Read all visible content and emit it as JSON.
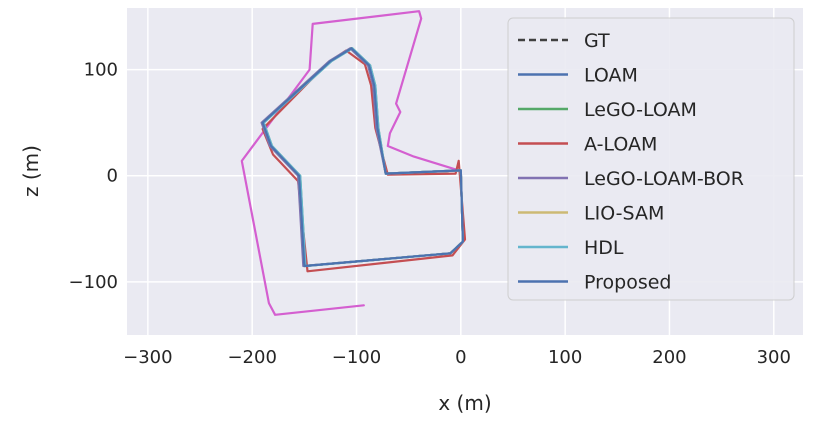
{
  "chart_data": {
    "type": "line",
    "xlabel": "x (m)",
    "ylabel": "z (m)",
    "xlim": [
      -320,
      328
    ],
    "ylim": [
      -150,
      158
    ],
    "xticks": [
      -300,
      -200,
      -100,
      0,
      100,
      200,
      300
    ],
    "xtick_labels": [
      "−300",
      "−200",
      "−100",
      "0",
      "100",
      "200",
      "300"
    ],
    "yticks": [
      -100,
      0,
      100
    ],
    "ytick_labels": [
      "−100",
      "0",
      "100"
    ],
    "grid": true,
    "legend_position": "top-right",
    "background_color": "#EAEAF2",
    "series": [
      {
        "name": "GT",
        "color": "#404040",
        "dashed": true,
        "points": [
          [
            0,
            5
          ],
          [
            -72,
            2
          ],
          [
            -80,
            45
          ],
          [
            -83,
            85
          ],
          [
            -88,
            104
          ],
          [
            -105,
            120
          ],
          [
            -125,
            108
          ],
          [
            -190,
            50
          ],
          [
            -182,
            28
          ],
          [
            -155,
            0
          ],
          [
            -150,
            -85
          ],
          [
            -10,
            -73
          ],
          [
            2,
            -62
          ],
          [
            0,
            5
          ]
        ]
      },
      {
        "name": "LOAM",
        "color": "#4C72B0",
        "dashed": false,
        "points": [
          [
            0,
            5
          ],
          [
            -72,
            2
          ],
          [
            -80,
            45
          ],
          [
            -83,
            85
          ],
          [
            -88,
            104
          ],
          [
            -105,
            120
          ],
          [
            -125,
            108
          ],
          [
            -190,
            50
          ],
          [
            -182,
            28
          ],
          [
            -155,
            0
          ],
          [
            -150,
            -85
          ],
          [
            -10,
            -73
          ],
          [
            2,
            -62
          ],
          [
            0,
            5
          ]
        ]
      },
      {
        "name": "LeGO-LOAM",
        "color": "#55A868",
        "dashed": false,
        "points": [
          [
            0,
            5
          ],
          [
            -72,
            2
          ],
          [
            -79,
            45
          ],
          [
            -82,
            85
          ],
          [
            -87,
            104
          ],
          [
            -104,
            120
          ],
          [
            -124,
            108
          ],
          [
            -189,
            50
          ],
          [
            -181,
            28
          ],
          [
            -154,
            0
          ],
          [
            -149,
            -85
          ],
          [
            -10,
            -73
          ],
          [
            2,
            -62
          ],
          [
            0,
            5
          ]
        ]
      },
      {
        "name": "A-LOAM",
        "color": "#C44E52",
        "dashed": false,
        "points": [
          [
            -2,
            14
          ],
          [
            -5,
            2
          ],
          [
            -70,
            1
          ],
          [
            -82,
            45
          ],
          [
            -86,
            85
          ],
          [
            -92,
            105
          ],
          [
            -110,
            118
          ],
          [
            -128,
            106
          ],
          [
            -190,
            44
          ],
          [
            -180,
            20
          ],
          [
            -156,
            -5
          ],
          [
            -147,
            -90
          ],
          [
            -8,
            -75
          ],
          [
            4,
            -60
          ],
          [
            -2,
            14
          ]
        ]
      },
      {
        "name": "LeGO-LOAM-BOR",
        "color": "#8172B2",
        "dashed": false,
        "points": [
          [
            0,
            5
          ],
          [
            -72,
            2
          ],
          [
            -81,
            45
          ],
          [
            -84,
            85
          ],
          [
            -89,
            104
          ],
          [
            -106,
            120
          ],
          [
            -126,
            108
          ],
          [
            -191,
            50
          ],
          [
            -183,
            28
          ],
          [
            -156,
            0
          ],
          [
            -151,
            -85
          ],
          [
            -10,
            -73
          ],
          [
            2,
            -62
          ],
          [
            0,
            5
          ]
        ]
      },
      {
        "name": "LIO-SAM",
        "color": "#CCB974",
        "dashed": false,
        "points": [
          [
            0,
            5
          ],
          [
            -72,
            2
          ],
          [
            -80,
            45
          ],
          [
            -83,
            85
          ],
          [
            -88,
            104
          ],
          [
            -105,
            120
          ],
          [
            -125,
            108
          ],
          [
            -190,
            50
          ],
          [
            -182,
            28
          ],
          [
            -155,
            0
          ],
          [
            -150,
            -85
          ],
          [
            -10,
            -73
          ],
          [
            2,
            -62
          ],
          [
            0,
            5
          ]
        ]
      },
      {
        "name": "HDL",
        "color": "#64B5CD",
        "dashed": false,
        "points": [
          [
            0,
            5
          ],
          [
            -72,
            2
          ],
          [
            -79,
            45
          ],
          [
            -82,
            85
          ],
          [
            -87,
            104
          ],
          [
            -104,
            120
          ],
          [
            -124,
            108
          ],
          [
            -189,
            50
          ],
          [
            -181,
            28
          ],
          [
            -154,
            0
          ],
          [
            -149,
            -85
          ],
          [
            -10,
            -73
          ],
          [
            2,
            -62
          ],
          [
            0,
            5
          ]
        ]
      },
      {
        "name": "Proposed",
        "color": "#4C72B0",
        "dashed": false,
        "points": [
          [
            0,
            5
          ],
          [
            -72,
            2
          ],
          [
            -80,
            45
          ],
          [
            -83,
            85
          ],
          [
            -88,
            104
          ],
          [
            -105,
            120
          ],
          [
            -125,
            108
          ],
          [
            -190,
            50
          ],
          [
            -182,
            28
          ],
          [
            -155,
            0
          ],
          [
            -150,
            -85
          ],
          [
            -10,
            -73
          ],
          [
            2,
            -62
          ],
          [
            0,
            5
          ]
        ]
      },
      {
        "color": "#D45FD0",
        "dashed": false,
        "in_legend": false,
        "points": [
          [
            -93,
            -122
          ],
          [
            -178,
            -131
          ],
          [
            -184,
            -120
          ],
          [
            -210,
            14
          ],
          [
            -145,
            100
          ],
          [
            -142,
            143
          ],
          [
            -40,
            155
          ],
          [
            -38,
            148
          ],
          [
            -62,
            68
          ],
          [
            -58,
            60
          ],
          [
            -68,
            40
          ],
          [
            -70,
            28
          ],
          [
            -45,
            18
          ],
          [
            -5,
            6
          ]
        ]
      }
    ]
  }
}
